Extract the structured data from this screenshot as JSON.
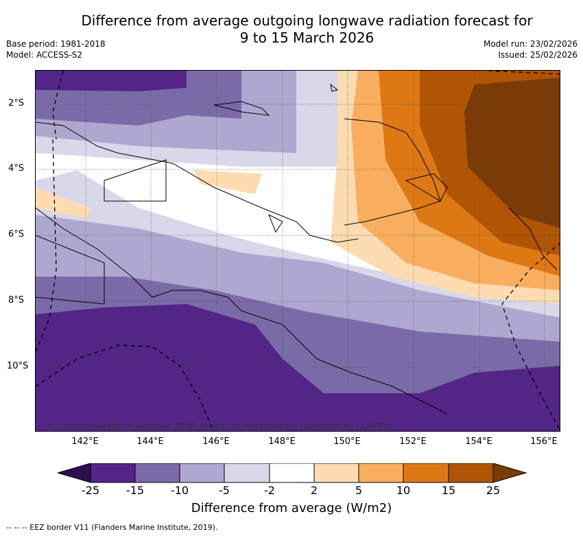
{
  "title": {
    "line1": "Difference from average outgoing longwave radiation forecast for",
    "line2": "9 to 15 March 2026"
  },
  "meta": {
    "base_period": "Base period: 1981-2018",
    "model": "Model: ACCESS-S2",
    "model_run": "Model run: 23/02/2026",
    "issued": "Issued: 25/02/2026"
  },
  "axes": {
    "lat_labels": [
      "2°S",
      "4°S",
      "6°S",
      "8°S",
      "10°S"
    ],
    "lon_labels": [
      "142°E",
      "144°E",
      "146°E",
      "148°E",
      "150°E",
      "152°E",
      "154°E",
      "156°E"
    ]
  },
  "colorbar": {
    "title": "Difference from average (W/m2)",
    "labels": [
      "-25",
      "-15",
      "-10",
      "-5",
      "-2",
      "2",
      "5",
      "10",
      "15",
      "25"
    ],
    "colors": [
      "#2d0e4f",
      "#522587",
      "#7b6aa8",
      "#aea8d0",
      "#d8d8ea",
      "#ffffff",
      "#fddcb2",
      "#f8ae5e",
      "#de7815",
      "#b05506",
      "#7b3b06"
    ]
  },
  "copyright": "© Commonwealth of Australia 2026, Bureau of Meteorology, supported by COSPPac",
  "footnote": "--  --  -- EEZ border V11 (Flanders Marine Institute, 2019)."
}
